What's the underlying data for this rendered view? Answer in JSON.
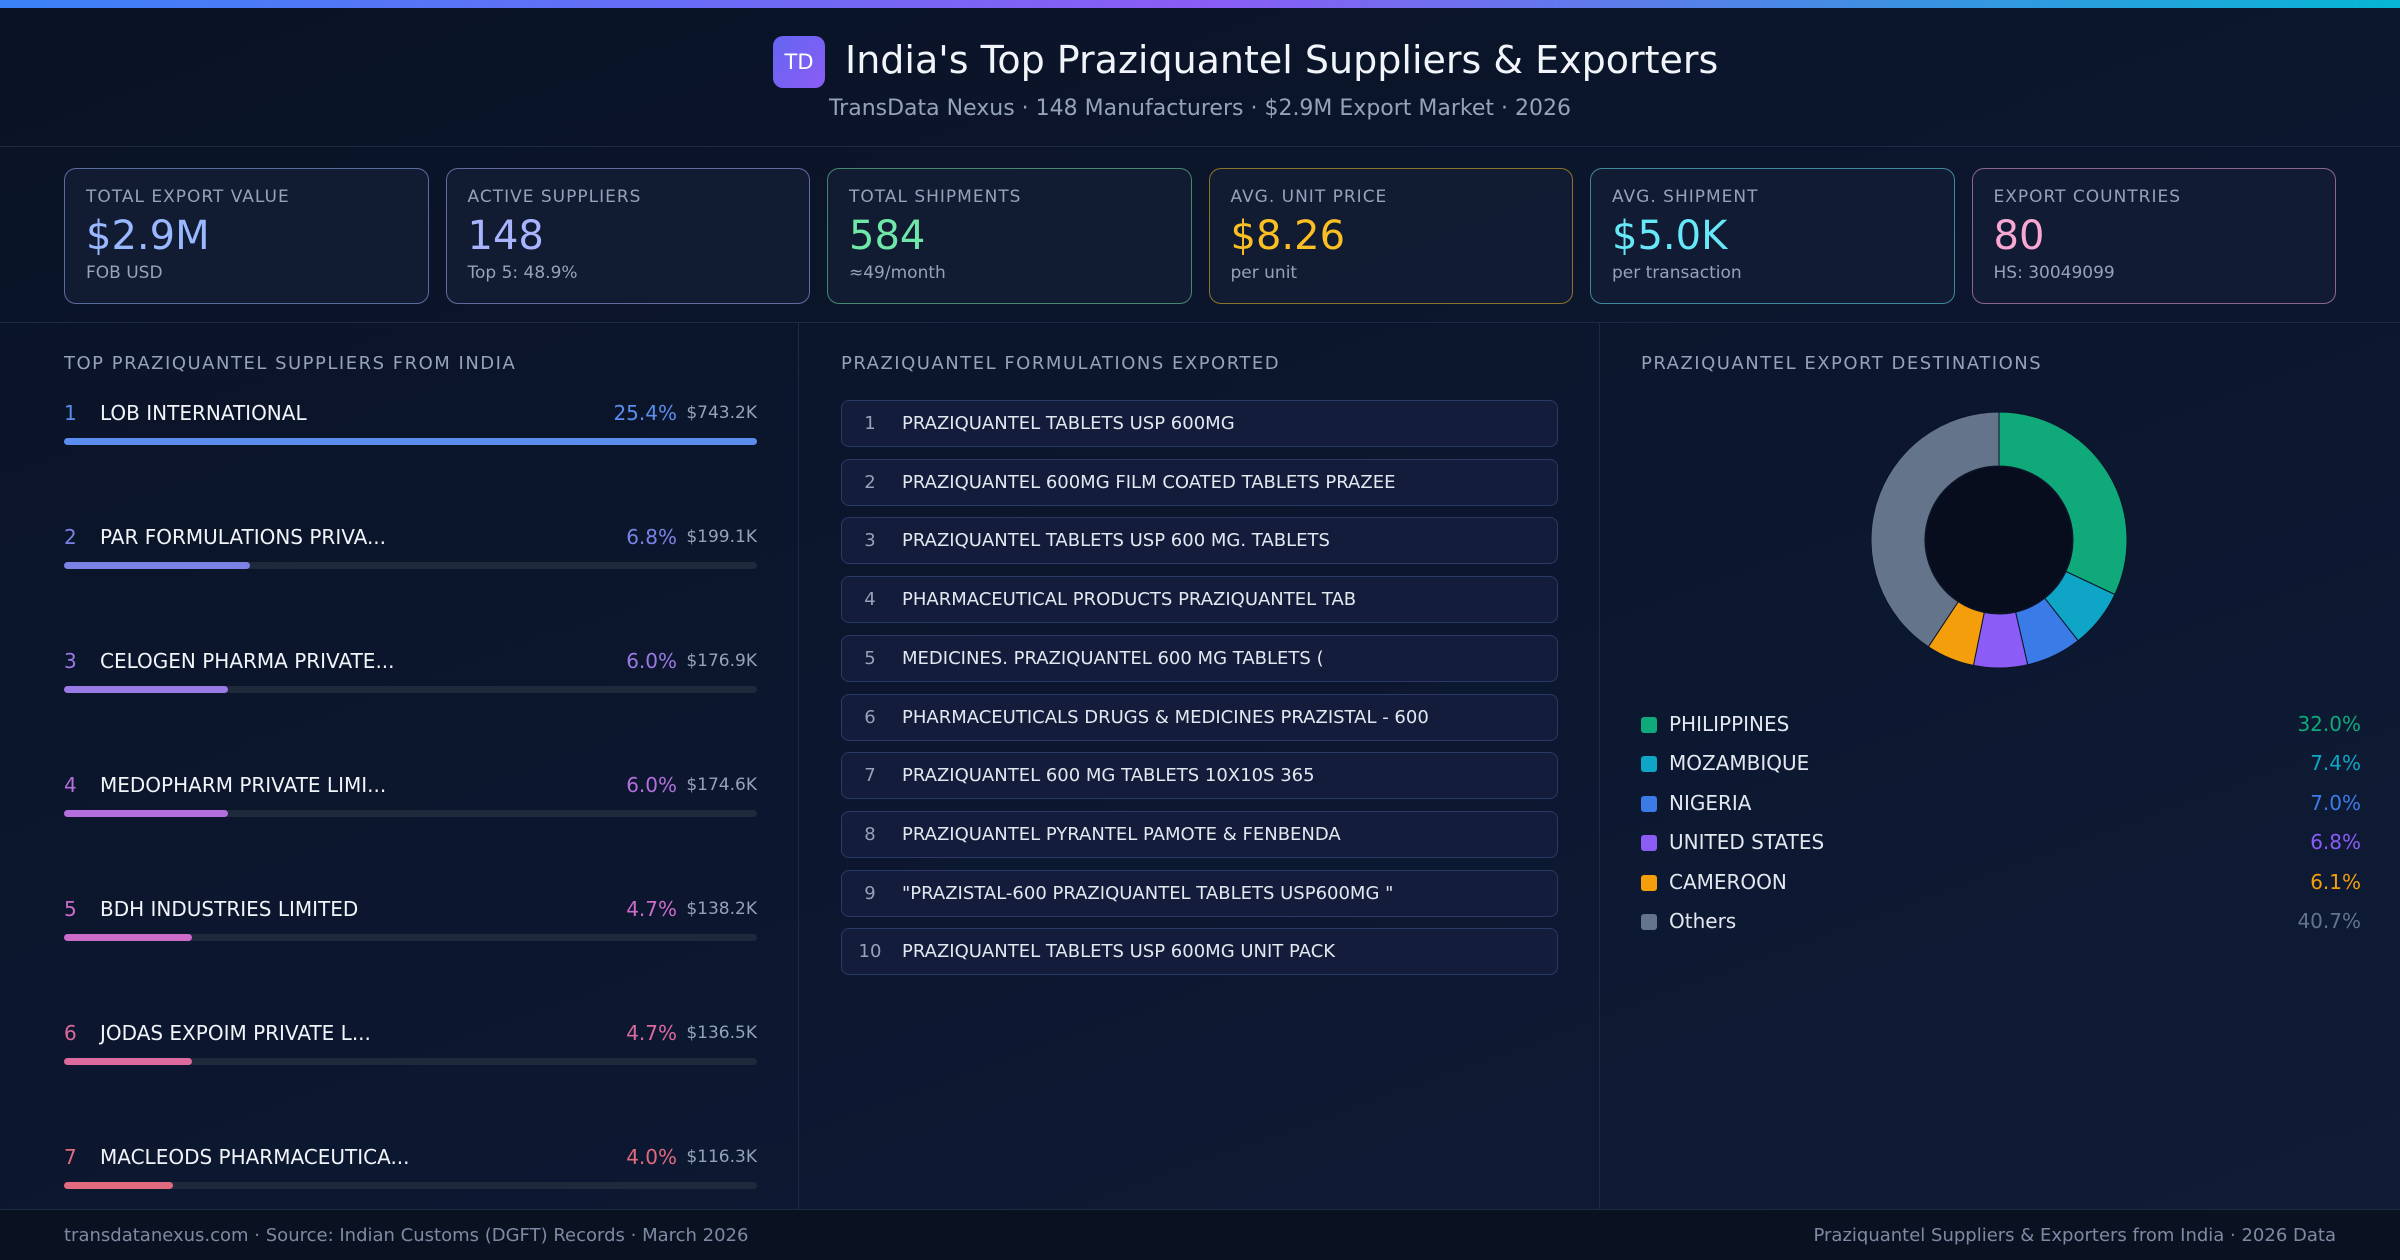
{
  "header": {
    "logo": "TD",
    "title": "India's Top Praziquantel Suppliers & Exporters",
    "subtitle": "TransData Nexus · 148 Manufacturers · $2.9M Export Market · 2026"
  },
  "kpis": [
    {
      "label": "TOTAL EXPORT VALUE",
      "value": "$2.9M",
      "note": "FOB USD",
      "color": "#9ab8ff"
    },
    {
      "label": "ACTIVE SUPPLIERS",
      "value": "148",
      "note": "Top 5: 48.9%",
      "color": "#a9b4ff"
    },
    {
      "label": "TOTAL SHIPMENTS",
      "value": "584",
      "note": "≈49/month",
      "color": "#6ee7a8"
    },
    {
      "label": "AVG. UNIT PRICE",
      "value": "$8.26",
      "note": "per unit",
      "color": "#fbbf24"
    },
    {
      "label": "AVG. SHIPMENT",
      "value": "$5.0K",
      "note": "per transaction",
      "color": "#67e8f9"
    },
    {
      "label": "EXPORT COUNTRIES",
      "value": "80",
      "note": "HS: 30049099",
      "color": "#f9a8d4"
    }
  ],
  "suppliers": {
    "title": "TOP PRAZIQUANTEL SUPPLIERS FROM INDIA",
    "items": [
      {
        "rank": 1,
        "name": "LOB INTERNATIONAL",
        "share": 25.4,
        "share_label": "25.4%",
        "value": "$743.2K",
        "color": "#5b8def"
      },
      {
        "rank": 2,
        "name": "PAR FORMULATIONS PRIVA...",
        "share": 6.8,
        "share_label": "6.8%",
        "value": "$199.1K",
        "color": "#7b82e6"
      },
      {
        "rank": 3,
        "name": "CELOGEN PHARMA PRIVATE...",
        "share": 6.0,
        "share_label": "6.0%",
        "value": "$176.9K",
        "color": "#9a7ae4"
      },
      {
        "rank": 4,
        "name": "MEDOPHARM PRIVATE LIMI...",
        "share": 6.0,
        "share_label": "6.0%",
        "value": "$174.6K",
        "color": "#b46fde"
      },
      {
        "rank": 5,
        "name": "BDH INDUSTRIES LIMITED",
        "share": 4.7,
        "share_label": "4.7%",
        "value": "$138.2K",
        "color": "#cc6bc8"
      },
      {
        "rank": 6,
        "name": "JODAS EXPOIM PRIVATE L...",
        "share": 4.7,
        "share_label": "4.7%",
        "value": "$136.5K",
        "color": "#dc6a9e"
      },
      {
        "rank": 7,
        "name": "MACLEODS PHARMACEUTICA...",
        "share": 4.0,
        "share_label": "4.0%",
        "value": "$116.3K",
        "color": "#e06a7e"
      }
    ]
  },
  "formulations": {
    "title": "PRAZIQUANTEL FORMULATIONS EXPORTED",
    "items": [
      {
        "rank": 1,
        "name": "PRAZIQUANTEL TABLETS USP 600MG"
      },
      {
        "rank": 2,
        "name": "PRAZIQUANTEL 600MG FILM COATED TABLETS PRAZEE"
      },
      {
        "rank": 3,
        "name": "PRAZIQUANTEL TABLETS USP 600 MG. TABLETS"
      },
      {
        "rank": 4,
        "name": "PHARMACEUTICAL PRODUCTS PRAZIQUANTEL TAB"
      },
      {
        "rank": 5,
        "name": "MEDICINES. PRAZIQUANTEL 600 MG TABLETS ("
      },
      {
        "rank": 6,
        "name": "PHARMACEUTICALS DRUGS & MEDICINES PRAZISTAL - 600"
      },
      {
        "rank": 7,
        "name": "PRAZIQUANTEL 600 MG TABLETS 10X10S 365"
      },
      {
        "rank": 8,
        "name": "PRAZIQUANTEL PYRANTEL PAMOTE & FENBENDA"
      },
      {
        "rank": 9,
        "name": "\"PRAZISTAL-600 PRAZIQUANTEL TABLETS USP600MG \""
      },
      {
        "rank": 10,
        "name": "PRAZIQUANTEL TABLETS USP 600MG UNIT PACK"
      }
    ]
  },
  "destinations": {
    "title": "PRAZIQUANTEL EXPORT DESTINATIONS",
    "type": "donut",
    "items": [
      {
        "name": "PHILIPPINES",
        "share": 32.0,
        "share_label": "32.0%",
        "color": "#10a97a"
      },
      {
        "name": "MOZAMBIQUE",
        "share": 7.4,
        "share_label": "7.4%",
        "color": "#0ea5c6"
      },
      {
        "name": "NIGERIA",
        "share": 7.0,
        "share_label": "7.0%",
        "color": "#3b7be8"
      },
      {
        "name": "UNITED STATES",
        "share": 6.8,
        "share_label": "6.8%",
        "color": "#8b5cf6"
      },
      {
        "name": "CAMEROON",
        "share": 6.1,
        "share_label": "6.1%",
        "color": "#f59e0b"
      },
      {
        "name": "Others",
        "share": 40.7,
        "share_label": "40.7%",
        "color": "#64748b"
      }
    ]
  },
  "footer": {
    "left": "transdatanexus.com · Source: Indian Customs (DGFT) Records · March 2026",
    "right": "Praziquantel Suppliers & Exporters from India · 2026 Data"
  }
}
